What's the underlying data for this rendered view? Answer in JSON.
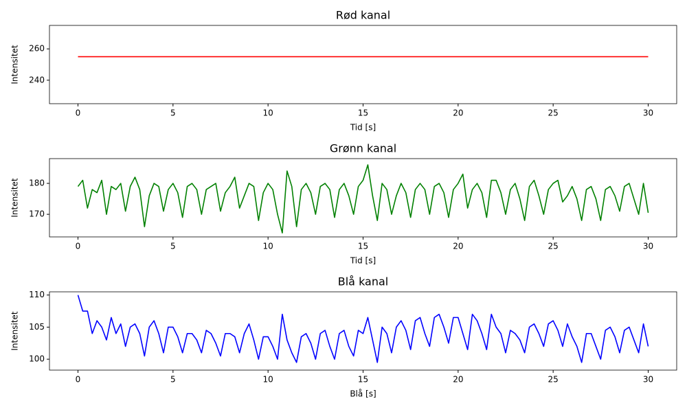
{
  "chart_data": [
    {
      "type": "line",
      "title": "Rød kanal",
      "xlabel": "Tid [s]",
      "ylabel": "Intensitet",
      "x": [
        0,
        30
      ],
      "series": [
        {
          "color": "#ff0000",
          "values": [
            255,
            255
          ]
        }
      ],
      "xlim": [
        -1.5,
        31.5
      ],
      "xticks": [
        0,
        5,
        10,
        15,
        20,
        25,
        30
      ],
      "ylim": [
        225,
        275
      ],
      "yticks": [
        240,
        260
      ]
    },
    {
      "type": "line",
      "title": "Grønn kanal",
      "xlabel": "Tid [s]",
      "ylabel": "Intensitet",
      "x": [
        0,
        0.25,
        0.5,
        0.75,
        1,
        1.25,
        1.5,
        1.75,
        2,
        2.25,
        2.5,
        2.75,
        3,
        3.25,
        3.5,
        3.75,
        4,
        4.25,
        4.5,
        4.75,
        5,
        5.25,
        5.5,
        5.75,
        6,
        6.25,
        6.5,
        6.75,
        7,
        7.25,
        7.5,
        7.75,
        8,
        8.25,
        8.5,
        8.75,
        9,
        9.25,
        9.5,
        9.75,
        10,
        10.25,
        10.5,
        10.75,
        11,
        11.25,
        11.5,
        11.75,
        12,
        12.25,
        12.5,
        12.75,
        13,
        13.25,
        13.5,
        13.75,
        14,
        14.25,
        14.5,
        14.75,
        15,
        15.25,
        15.5,
        15.75,
        16,
        16.25,
        16.5,
        16.75,
        17,
        17.25,
        17.5,
        17.75,
        18,
        18.25,
        18.5,
        18.75,
        19,
        19.25,
        19.5,
        19.75,
        20,
        20.25,
        20.5,
        20.75,
        21,
        21.25,
        21.5,
        21.75,
        22,
        22.25,
        22.5,
        22.75,
        23,
        23.25,
        23.5,
        23.75,
        24,
        24.25,
        24.5,
        24.75,
        25,
        25.25,
        25.5,
        25.75,
        26,
        26.25,
        26.5,
        26.75,
        27,
        27.25,
        27.5,
        27.75,
        28,
        28.25,
        28.5,
        28.75,
        29,
        29.25,
        29.5,
        29.75,
        30
      ],
      "series": [
        {
          "color": "#008000",
          "values": [
            179,
            181,
            172,
            178,
            177,
            181,
            170,
            179,
            178,
            180,
            171,
            179,
            182,
            178,
            166,
            176,
            180,
            179,
            171,
            178,
            180,
            177,
            169,
            179,
            180,
            178,
            170,
            178,
            179,
            180,
            171,
            177,
            179,
            182,
            172,
            176,
            180,
            179,
            168,
            177,
            180,
            178,
            170,
            164,
            184,
            179,
            166,
            178,
            180,
            177,
            170,
            179,
            180,
            178,
            169,
            178,
            180,
            176,
            170,
            179,
            181,
            186,
            176,
            168,
            180,
            178,
            170,
            176,
            180,
            177,
            169,
            178,
            180,
            178,
            170,
            179,
            180,
            177,
            169,
            178,
            180,
            183,
            172,
            178,
            180,
            177,
            169,
            181,
            181,
            177,
            170,
            178,
            180,
            175,
            168,
            179,
            181,
            176,
            170,
            178,
            180,
            181,
            174,
            176,
            179,
            175,
            168,
            178,
            179,
            175,
            168,
            178,
            179,
            176,
            171,
            179,
            180,
            175,
            170,
            180,
            170.5
          ]
        }
      ],
      "xlim": [
        -1.5,
        31.5
      ],
      "xticks": [
        0,
        5,
        10,
        15,
        20,
        25,
        30
      ],
      "ylim": [
        162.7,
        188
      ],
      "yticks": [
        170,
        180
      ]
    },
    {
      "type": "line",
      "title": "Blå kanal",
      "xlabel": "Blå [s]",
      "ylabel": "Intensitet",
      "x": [
        0,
        0.25,
        0.5,
        0.75,
        1,
        1.25,
        1.5,
        1.75,
        2,
        2.25,
        2.5,
        2.75,
        3,
        3.25,
        3.5,
        3.75,
        4,
        4.25,
        4.5,
        4.75,
        5,
        5.25,
        5.5,
        5.75,
        6,
        6.25,
        6.5,
        6.75,
        7,
        7.25,
        7.5,
        7.75,
        8,
        8.25,
        8.5,
        8.75,
        9,
        9.25,
        9.5,
        9.75,
        10,
        10.25,
        10.5,
        10.75,
        11,
        11.25,
        11.5,
        11.75,
        12,
        12.25,
        12.5,
        12.75,
        13,
        13.25,
        13.5,
        13.75,
        14,
        14.25,
        14.5,
        14.75,
        15,
        15.25,
        15.5,
        15.75,
        16,
        16.25,
        16.5,
        16.75,
        17,
        17.25,
        17.5,
        17.75,
        18,
        18.25,
        18.5,
        18.75,
        19,
        19.25,
        19.5,
        19.75,
        20,
        20.25,
        20.5,
        20.75,
        21,
        21.25,
        21.5,
        21.75,
        22,
        22.25,
        22.5,
        22.75,
        23,
        23.25,
        23.5,
        23.75,
        24,
        24.25,
        24.5,
        24.75,
        25,
        25.25,
        25.5,
        25.75,
        26,
        26.25,
        26.5,
        26.75,
        27,
        27.25,
        27.5,
        27.75,
        28,
        28.25,
        28.5,
        28.75,
        29,
        29.25,
        29.5,
        29.75,
        30
      ],
      "series": [
        {
          "color": "#0000ff",
          "values": [
            110,
            107.5,
            107.5,
            104,
            106,
            105,
            103,
            106.5,
            104,
            105.5,
            102,
            105,
            105.5,
            104,
            100.5,
            105,
            106,
            104,
            101,
            105,
            105,
            103.5,
            101,
            104,
            104,
            103,
            101,
            104.5,
            104,
            102.5,
            100.5,
            104,
            104,
            103.5,
            101,
            104,
            105.5,
            103,
            100,
            103.5,
            103.5,
            102,
            100,
            107,
            103,
            101,
            99.5,
            103.5,
            104,
            102.5,
            100,
            104,
            104.5,
            102,
            100,
            104,
            104.5,
            102,
            100.5,
            104.5,
            104,
            106.5,
            103,
            99.5,
            105,
            104,
            101,
            105,
            106,
            104.5,
            101.5,
            106,
            106.5,
            104,
            102,
            106.5,
            107,
            105,
            102.5,
            106.5,
            106.5,
            104,
            101.5,
            107,
            106,
            104,
            101.5,
            107,
            105,
            104,
            101,
            104.5,
            104,
            103,
            101,
            105,
            105.5,
            104,
            102,
            105.5,
            106,
            104.5,
            102,
            105.5,
            103.5,
            102,
            99.5,
            104,
            104,
            102,
            100,
            104.5,
            105,
            103.5,
            101,
            104.5,
            105,
            103,
            101,
            105.5,
            102
          ]
        }
      ],
      "xlim": [
        -1.5,
        31.5
      ],
      "xticks": [
        0,
        5,
        10,
        15,
        20,
        25,
        30
      ],
      "ylim": [
        98.3,
        110.5
      ],
      "yticks": [
        100,
        105,
        110
      ]
    }
  ]
}
